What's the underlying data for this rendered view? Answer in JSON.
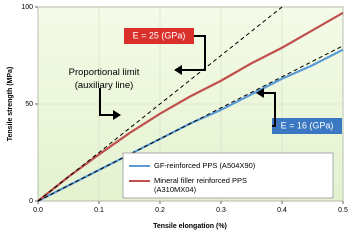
{
  "chart_data": {
    "type": "line",
    "xlabel": "Tensile elongation   (%)",
    "ylabel": "Tensile strength (MPa)",
    "x": [
      0,
      0.05,
      0.1,
      0.15,
      0.2,
      0.25,
      0.3,
      0.35,
      0.4,
      0.45,
      0.5
    ],
    "series": [
      {
        "name": "GF-reinforced PPS (A504X90)",
        "color": "#5b9bd5",
        "values": [
          0,
          8,
          16,
          24,
          32,
          40,
          47,
          55,
          63,
          70,
          78
        ]
      },
      {
        "name": "Mineral filler reinforced PPS\n(A310MX04)",
        "color": "#c0504d",
        "values": [
          0,
          12.5,
          24,
          35,
          45,
          54,
          62,
          71,
          79,
          88,
          97
        ]
      }
    ],
    "reference_lines": [
      {
        "x": [
          0,
          0.4
        ],
        "values": [
          0,
          100
        ],
        "color": "#000000"
      },
      {
        "x": [
          0,
          0.5
        ],
        "values": [
          0,
          80
        ],
        "color": "#000000"
      }
    ],
    "annotations": [
      "E = 25 (GPa)",
      "E = 16 (GPa)",
      "Proportional limit\n(auxiliary line)"
    ],
    "xlim": [
      0,
      0.5
    ],
    "ylim": [
      0,
      100
    ],
    "xticks": [
      {
        "value": 0,
        "label": "0.0"
      },
      0.1,
      0.2,
      0.3,
      0.4,
      0.5
    ],
    "yticks": [
      0,
      50,
      100
    ],
    "grid": true
  }
}
